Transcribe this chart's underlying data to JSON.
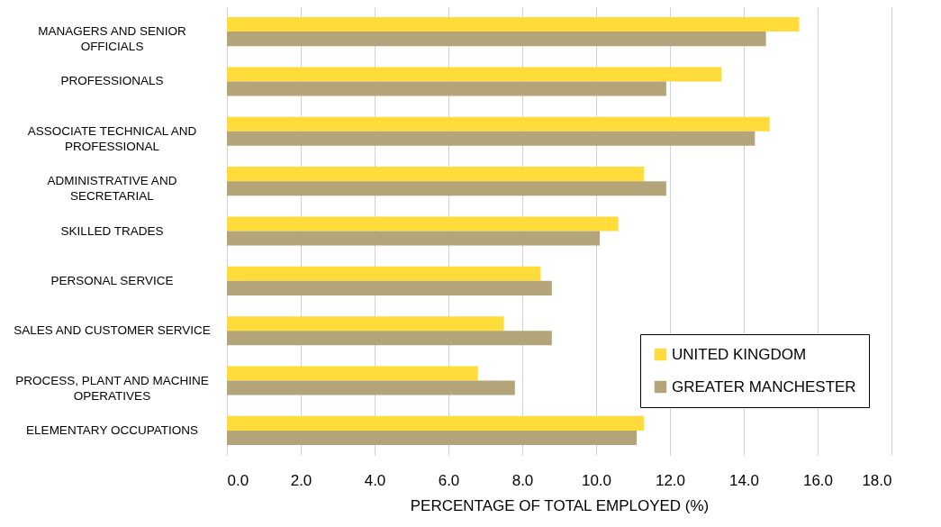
{
  "chart_data": {
    "type": "bar",
    "orientation": "horizontal",
    "xlabel": "PERCENTAGE OF TOTAL EMPLOYED (%)",
    "categories": [
      "MANAGERS AND SENIOR OFFICIALS",
      "PROFESSIONALS",
      "ASSOCIATE TECHNICAL AND PROFESSIONAL",
      "ADMINISTRATIVE AND SECRETARIAL",
      "SKILLED TRADES",
      "PERSONAL SERVICE",
      "SALES AND CUSTOMER SERVICE",
      "PROCESS, PLANT AND MACHINE OPERATIVES",
      "ELEMENTARY OCCUPATIONS"
    ],
    "series": [
      {
        "name": "UNITED KINGDOM",
        "color": "#ffdc3a",
        "values": [
          15.5,
          13.4,
          14.7,
          11.3,
          10.6,
          8.5,
          7.5,
          6.8,
          11.3
        ]
      },
      {
        "name": "GREATER MANCHESTER",
        "color": "#b3a47a",
        "values": [
          14.6,
          11.9,
          14.3,
          11.9,
          10.1,
          8.8,
          8.8,
          7.8,
          11.1
        ]
      }
    ],
    "xlim": [
      0,
      18
    ],
    "xticks": [
      {
        "value": 0,
        "label": "0.0"
      },
      {
        "value": 2,
        "label": "2.0"
      },
      {
        "value": 4,
        "label": "4.0"
      },
      {
        "value": 6,
        "label": "6.0"
      },
      {
        "value": 8,
        "label": "8.0"
      },
      {
        "value": 10,
        "label": "10.0"
      },
      {
        "value": 12,
        "label": "12.0"
      },
      {
        "value": 14,
        "label": "14.0"
      },
      {
        "value": 16,
        "label": "16.0"
      },
      {
        "value": 18,
        "label": "18.0"
      }
    ],
    "grid": "x",
    "legend": "bottom right"
  }
}
